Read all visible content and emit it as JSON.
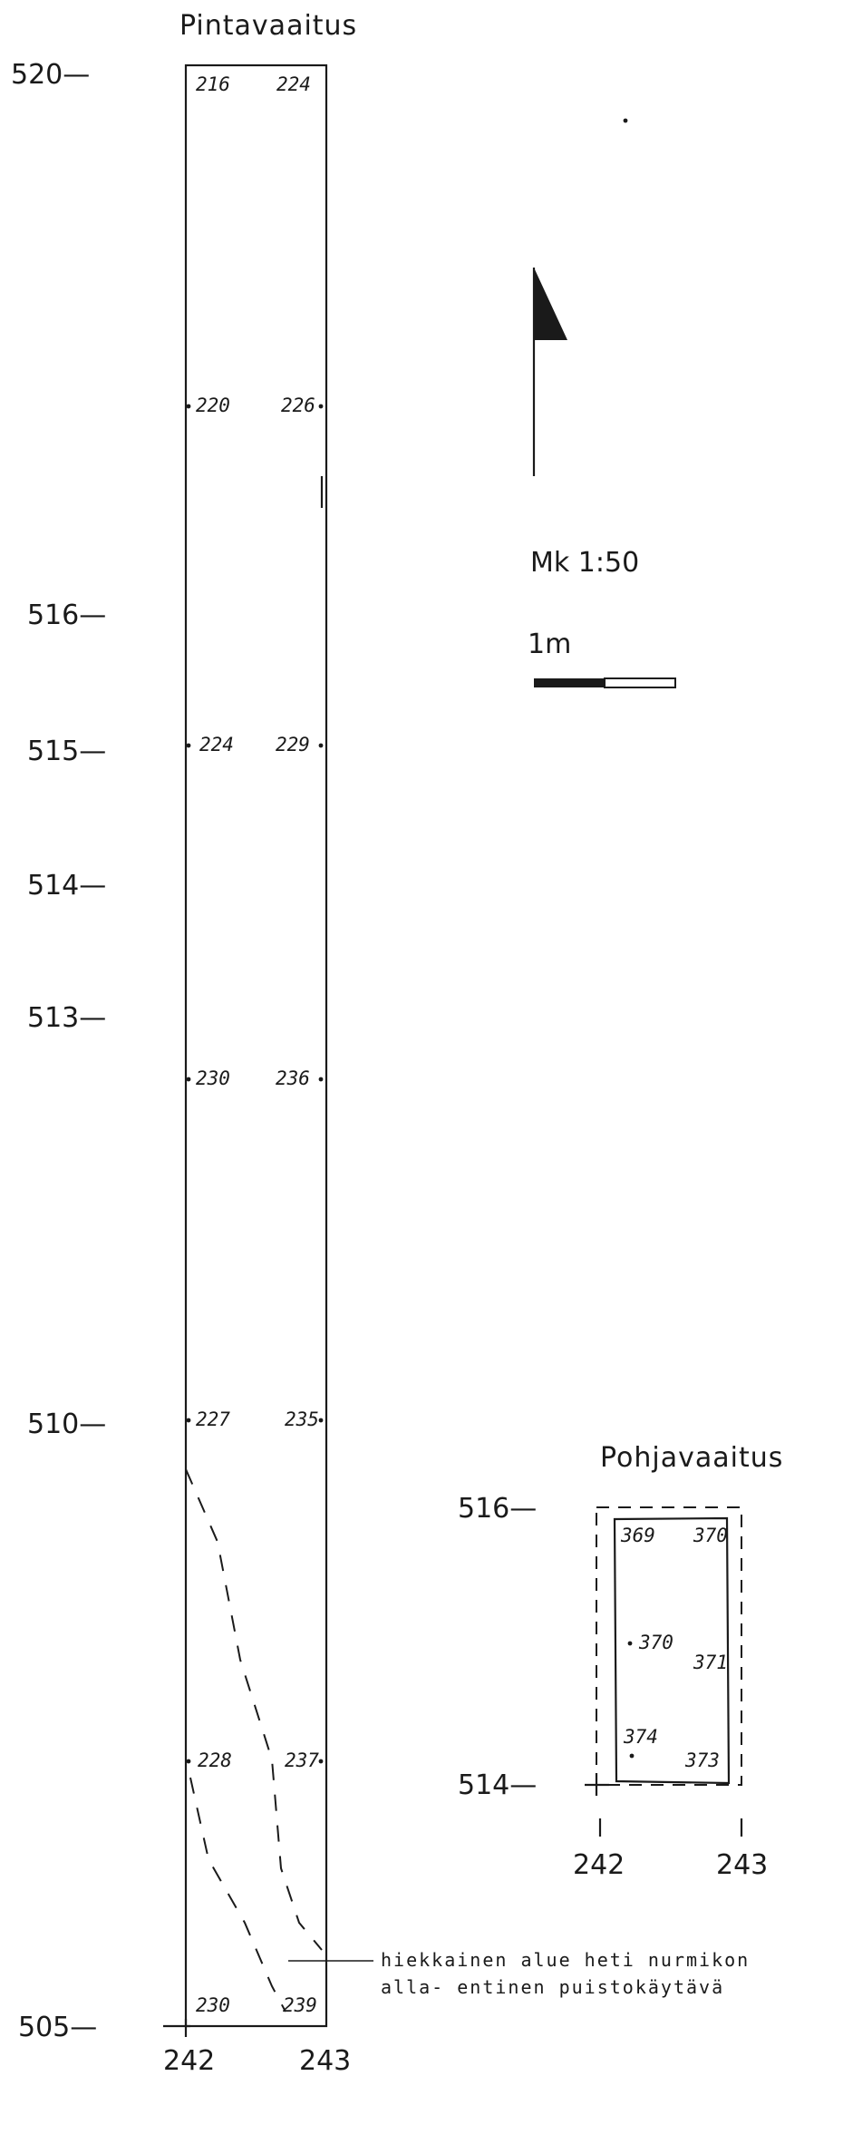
{
  "surface": {
    "title": "Pintavaaitus",
    "y_labels": [
      "520—",
      "516—",
      "515—",
      "514—",
      "513—",
      "510—",
      "505—"
    ],
    "x_labels": [
      "242",
      "243"
    ],
    "left_values": [
      "216",
      "220",
      "224",
      "230",
      "227",
      "228",
      "230"
    ],
    "right_values": [
      "224",
      "226",
      "229",
      "236",
      "235",
      "237",
      "239"
    ]
  },
  "north_arrow": {
    "icon": "north-arrow-icon"
  },
  "scale": {
    "ratio": "Mk  1:50",
    "bar_label": "1m"
  },
  "bottom": {
    "title": "Pohjavaaitus",
    "y_labels": [
      "516—",
      "514—"
    ],
    "x_labels": [
      "242",
      "243"
    ],
    "values": [
      "369",
      "370",
      "370",
      "371",
      "374",
      "373"
    ]
  },
  "annotation": {
    "line1": "hiekkainen alue heti nurmikon",
    "line2": "alla- entinen puistokäytävä"
  },
  "colors": {
    "ink": "#1a1a1a",
    "paper": "#ffffff"
  }
}
